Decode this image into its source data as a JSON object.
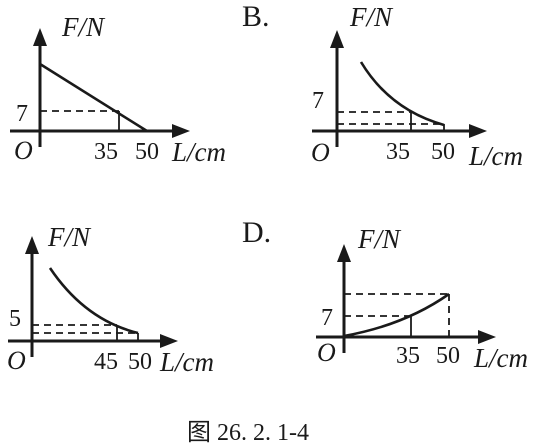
{
  "panels": {
    "a": {
      "y_axis_label": "F/N",
      "x_axis_label": "L/cm",
      "origin": "O",
      "y_tick": "7",
      "x_ticks": [
        "35",
        "50"
      ]
    },
    "b": {
      "option_letter": "B.",
      "y_axis_label": "F/N",
      "x_axis_label": "L/cm",
      "origin": "O",
      "y_tick": "7",
      "x_ticks": [
        "35",
        "50"
      ]
    },
    "c": {
      "y_axis_label": "F/N",
      "x_axis_label": "L/cm",
      "origin": "O",
      "y_tick": "5",
      "x_ticks": [
        "45",
        "50"
      ]
    },
    "d": {
      "option_letter": "D.",
      "y_axis_label": "F/N",
      "x_axis_label": "L/cm",
      "origin": "O",
      "y_tick": "7",
      "x_ticks": [
        "35",
        "50"
      ]
    }
  },
  "caption": "图 26. 2. 1-4"
}
